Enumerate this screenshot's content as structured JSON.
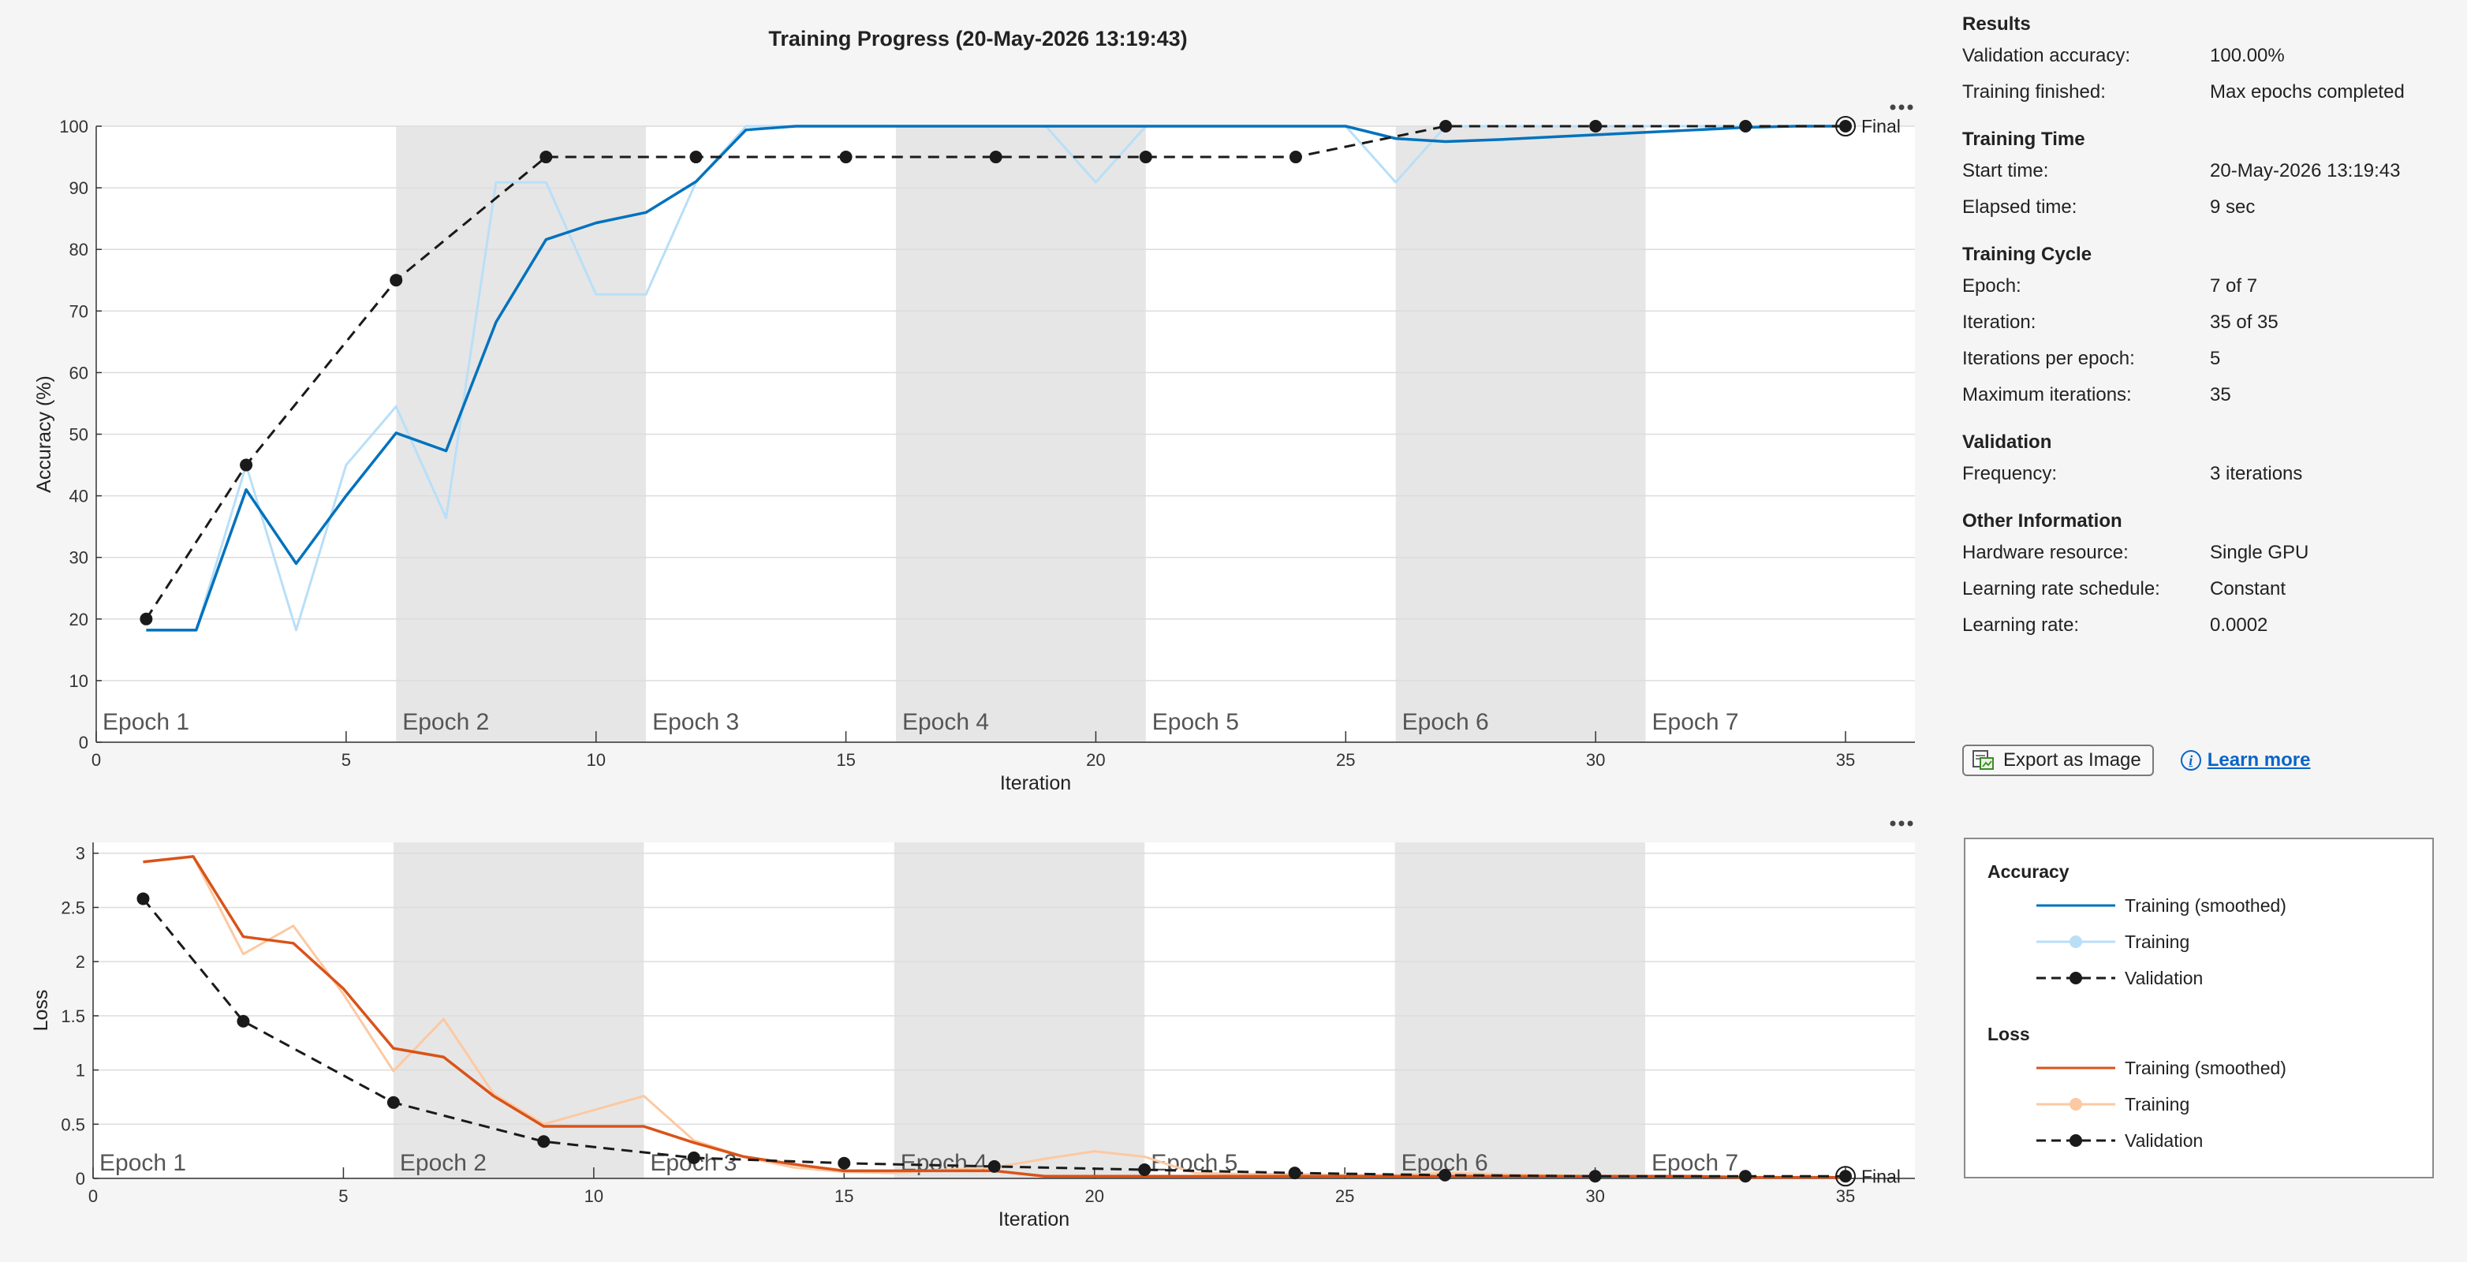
{
  "title": "Training Progress (20-May-2026 13:19:43)",
  "colors": {
    "acc_smooth": "#0072bd",
    "acc_raw": "#b9dff7",
    "loss_smooth": "#d95319",
    "loss_raw": "#fcc9a2",
    "validation": "#1a1a1a",
    "epoch_band": "#e6e6e6"
  },
  "chart_data": [
    {
      "type": "line",
      "name": "accuracy",
      "xlabel": "Iteration",
      "ylabel": "Accuracy (%)",
      "xlim": [
        0,
        35
      ],
      "ylim": [
        0,
        100
      ],
      "xticks": [
        0,
        5,
        10,
        15,
        20,
        25,
        30,
        35
      ],
      "yticks": [
        0,
        10,
        20,
        30,
        40,
        50,
        60,
        70,
        80,
        90,
        100
      ],
      "grid": true,
      "epochs": [
        {
          "label": "Epoch 1",
          "start": 0,
          "end": 6,
          "shaded": false
        },
        {
          "label": "Epoch 2",
          "start": 6,
          "end": 11,
          "shaded": true
        },
        {
          "label": "Epoch 3",
          "start": 11,
          "end": 16,
          "shaded": false
        },
        {
          "label": "Epoch 4",
          "start": 16,
          "end": 21,
          "shaded": true
        },
        {
          "label": "Epoch 5",
          "start": 21,
          "end": 26,
          "shaded": false
        },
        {
          "label": "Epoch 6",
          "start": 26,
          "end": 31,
          "shaded": true
        },
        {
          "label": "Epoch 7",
          "start": 31,
          "end": 36.5,
          "shaded": false
        }
      ],
      "final_label": "Final",
      "series": [
        {
          "name": "Training",
          "style": "raw",
          "x": [
            1,
            2,
            3,
            4,
            5,
            6,
            7,
            8,
            9,
            10,
            11,
            12,
            13,
            14,
            15,
            16,
            17,
            18,
            19,
            20,
            21,
            22,
            23,
            24,
            25,
            26,
            27,
            28,
            29,
            30,
            31,
            32,
            33,
            34,
            35
          ],
          "y": [
            18.2,
            18.2,
            45,
            18.2,
            45,
            54.5,
            36.4,
            90.9,
            90.9,
            72.7,
            72.7,
            90.9,
            100,
            100,
            100,
            100,
            100,
            100,
            100,
            90.9,
            100,
            100,
            100,
            100,
            100,
            90.9,
            100,
            100,
            100,
            100,
            100,
            100,
            100,
            100,
            100
          ]
        },
        {
          "name": "Training (smoothed)",
          "style": "smoothed",
          "x": [
            1,
            2,
            3,
            4,
            5,
            6,
            7,
            8,
            9,
            10,
            11,
            12,
            13,
            14,
            15,
            16,
            17,
            18,
            19,
            20,
            21,
            22,
            23,
            24,
            25,
            26,
            27,
            28,
            29,
            30,
            31,
            32,
            33,
            34,
            35
          ],
          "y": [
            18.2,
            18.2,
            41,
            29,
            40,
            50.2,
            47.3,
            68.2,
            81.6,
            84.3,
            86,
            91,
            99.4,
            100,
            100,
            100,
            100,
            100,
            100,
            100,
            100,
            100,
            100,
            100,
            100,
            98,
            97.5,
            97.8,
            98.2,
            98.6,
            99,
            99.4,
            99.8,
            100,
            100
          ]
        },
        {
          "name": "Validation",
          "style": "validation",
          "x": [
            1,
            3,
            6,
            9,
            12,
            15,
            18,
            21,
            24,
            27,
            30,
            33,
            35
          ],
          "y": [
            20,
            45,
            75,
            95,
            95,
            95,
            95,
            95,
            95,
            100,
            100,
            100,
            100
          ]
        }
      ]
    },
    {
      "type": "line",
      "name": "loss",
      "xlabel": "Iteration",
      "ylabel": "Loss",
      "xlim": [
        0,
        35
      ],
      "ylim": [
        0,
        3.1
      ],
      "xticks": [
        0,
        5,
        10,
        15,
        20,
        25,
        30,
        35
      ],
      "yticks": [
        0,
        0.5,
        1,
        1.5,
        2,
        2.5,
        3
      ],
      "ytick_labels": [
        "0",
        "0.5",
        "1",
        "1.5",
        "2",
        "2.5",
        "3"
      ],
      "grid": true,
      "epochs": [
        {
          "label": "Epoch 1",
          "start": 0,
          "end": 6,
          "shaded": false
        },
        {
          "label": "Epoch 2",
          "start": 6,
          "end": 11,
          "shaded": true
        },
        {
          "label": "Epoch 3",
          "start": 11,
          "end": 16,
          "shaded": false
        },
        {
          "label": "Epoch 4",
          "start": 16,
          "end": 21,
          "shaded": true
        },
        {
          "label": "Epoch 5",
          "start": 21,
          "end": 26,
          "shaded": false
        },
        {
          "label": "Epoch 6",
          "start": 26,
          "end": 31,
          "shaded": true
        },
        {
          "label": "Epoch 7",
          "start": 31,
          "end": 36.5,
          "shaded": false
        }
      ],
      "final_label": "Final",
      "series": [
        {
          "name": "Training",
          "style": "raw",
          "x": [
            1,
            2,
            3,
            4,
            5,
            6,
            7,
            8,
            9,
            10,
            11,
            12,
            13,
            14,
            15,
            16,
            17,
            18,
            19,
            20,
            21,
            22,
            23,
            24,
            25,
            26,
            27,
            28,
            29,
            30,
            31,
            32,
            33,
            34,
            35
          ],
          "y": [
            2.92,
            2.97,
            2.07,
            2.33,
            1.7,
            0.99,
            1.47,
            0.78,
            0.5,
            0.63,
            0.76,
            0.35,
            0.2,
            0.1,
            0.06,
            0.05,
            0.08,
            0.1,
            0.18,
            0.25,
            0.2,
            0.05,
            0.04,
            0.04,
            0.03,
            0.03,
            0.05,
            0.04,
            0.03,
            0.02,
            0.02,
            0.02,
            0.01,
            0.01,
            0.01
          ]
        },
        {
          "name": "Training (smoothed)",
          "style": "smoothed",
          "x": [
            1,
            2,
            3,
            4,
            5,
            6,
            7,
            8,
            9,
            10,
            11,
            12,
            13,
            14,
            15,
            16,
            17,
            18,
            19,
            20,
            21,
            22,
            23,
            24,
            25,
            26,
            27,
            28,
            29,
            30,
            31,
            32,
            33,
            34,
            35
          ],
          "y": [
            2.92,
            2.97,
            2.23,
            2.17,
            1.75,
            1.2,
            1.12,
            0.76,
            0.48,
            0.48,
            0.48,
            0.33,
            0.2,
            0.13,
            0.07,
            0.07,
            0.07,
            0.07,
            0.02,
            0.02,
            0.02,
            0.02,
            0.02,
            0.02,
            0.02,
            0.02,
            0.02,
            0.02,
            0.02,
            0.02,
            0.02,
            0.02,
            0.01,
            0.01,
            0.01
          ]
        },
        {
          "name": "Validation",
          "style": "validation",
          "x": [
            1,
            3,
            6,
            9,
            12,
            15,
            18,
            21,
            24,
            27,
            30,
            33,
            35
          ],
          "y": [
            2.58,
            1.45,
            0.7,
            0.34,
            0.19,
            0.14,
            0.11,
            0.08,
            0.05,
            0.03,
            0.02,
            0.02,
            0.02
          ]
        }
      ]
    }
  ],
  "info": {
    "sections": [
      {
        "title": "Results",
        "rows": [
          {
            "label": "Validation accuracy:",
            "value": "100.00%"
          },
          {
            "label": "Training finished:",
            "value": "Max epochs completed"
          }
        ]
      },
      {
        "title": "Training Time",
        "rows": [
          {
            "label": "Start time:",
            "value": "20-May-2026 13:19:43"
          },
          {
            "label": "Elapsed time:",
            "value": "9 sec"
          }
        ]
      },
      {
        "title": "Training Cycle",
        "rows": [
          {
            "label": "Epoch:",
            "value": "7 of 7"
          },
          {
            "label": "Iteration:",
            "value": "35 of 35"
          },
          {
            "label": "Iterations per epoch:",
            "value": "5"
          },
          {
            "label": "Maximum iterations:",
            "value": "35"
          }
        ]
      },
      {
        "title": "Validation",
        "rows": [
          {
            "label": "Frequency:",
            "value": "3 iterations"
          }
        ]
      },
      {
        "title": "Other Information",
        "rows": [
          {
            "label": "Hardware resource:",
            "value": "Single GPU"
          },
          {
            "label": "Learning rate schedule:",
            "value": "Constant"
          },
          {
            "label": "Learning rate:",
            "value": "0.0002"
          }
        ]
      }
    ]
  },
  "actions": {
    "export_label": "Export as Image",
    "learn_more_label": "Learn more",
    "more_options_icon": "ellipsis-icon"
  },
  "legend": {
    "groups": [
      {
        "title": "Accuracy",
        "items": [
          {
            "label": "Training (smoothed)",
            "style": "smoothed",
            "color_key": "acc_smooth"
          },
          {
            "label": "Training",
            "style": "raw",
            "color_key": "acc_raw"
          },
          {
            "label": "Validation",
            "style": "validation",
            "color_key": "validation"
          }
        ]
      },
      {
        "title": "Loss",
        "items": [
          {
            "label": "Training (smoothed)",
            "style": "smoothed",
            "color_key": "loss_smooth"
          },
          {
            "label": "Training",
            "style": "raw",
            "color_key": "loss_raw"
          },
          {
            "label": "Validation",
            "style": "validation",
            "color_key": "validation"
          }
        ]
      }
    ]
  }
}
